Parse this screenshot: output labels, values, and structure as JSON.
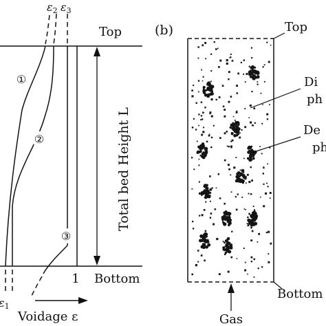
{
  "panel_a": {
    "top_label": "Top",
    "bottom_label": "Bottom",
    "height_label": "Total bed Height L",
    "voidage_label": "Voidage ε",
    "value_one": "1",
    "curve_labels": [
      "①",
      "②",
      "③"
    ],
    "eps_symbol": "ε",
    "eps_sub_1": "1",
    "eps_sub_2": "2",
    "eps_sub_3": "3"
  },
  "panel_b": {
    "panel_label": "(b)",
    "top_label": "Top",
    "bottom_label": "Bottom",
    "gas_label": "Gas",
    "dilute_line1": "Di",
    "dilute_line2": "ph",
    "dense_line1": "De",
    "dense_line2": "ph"
  },
  "colors": {
    "ink": "#111111",
    "background": "#ffffff"
  }
}
